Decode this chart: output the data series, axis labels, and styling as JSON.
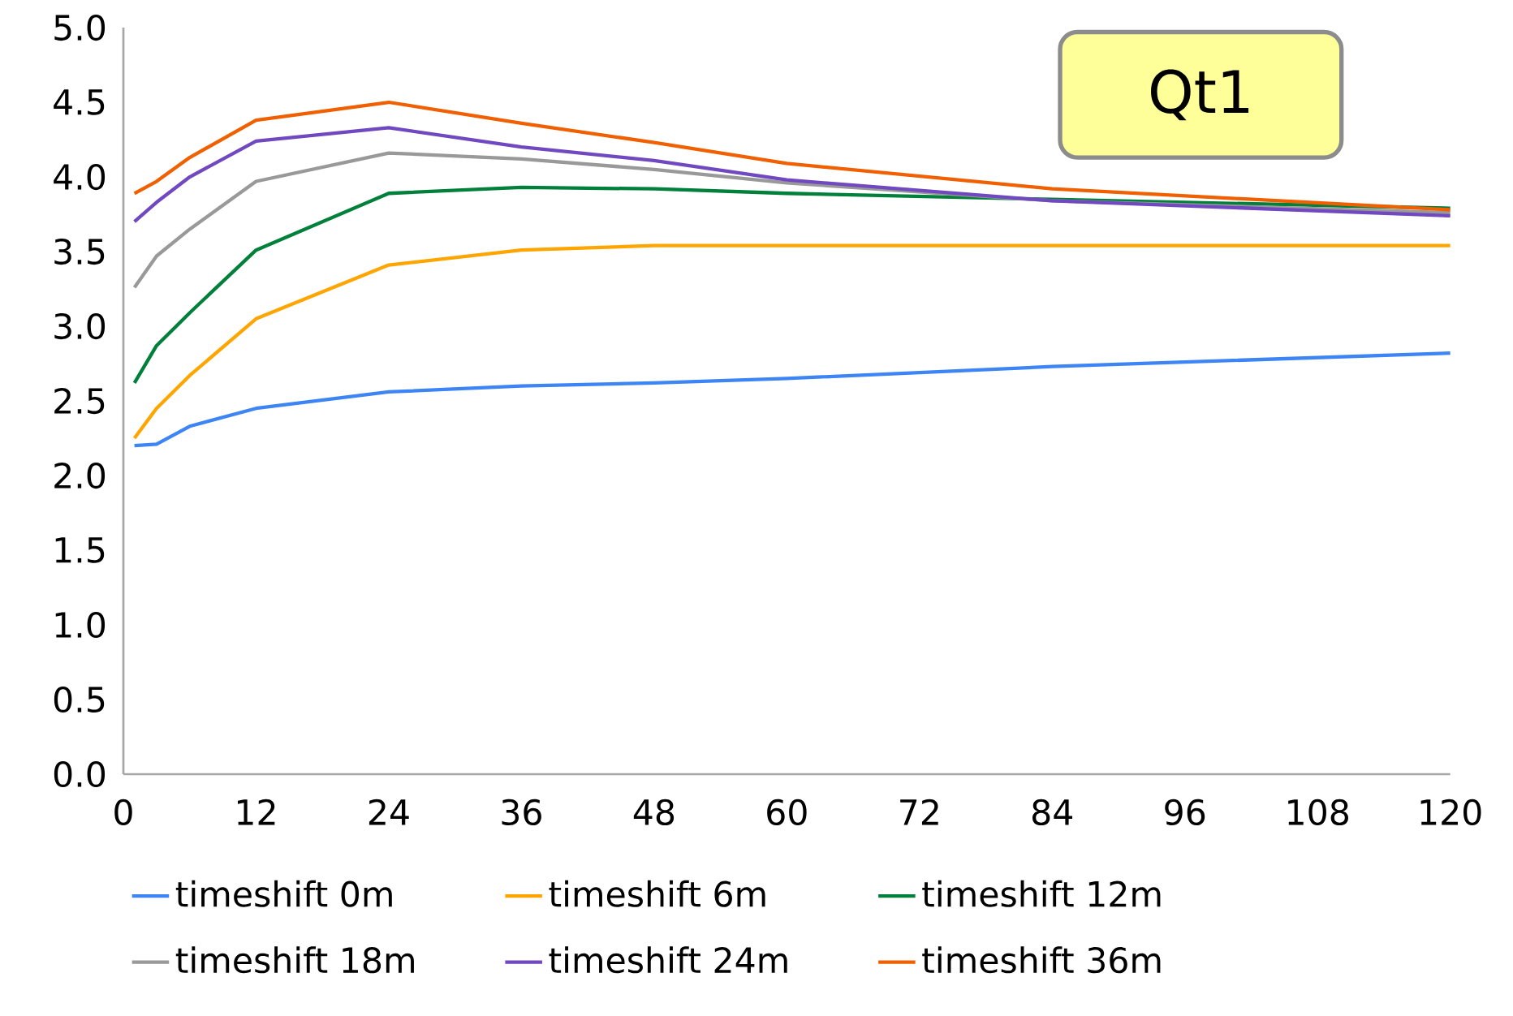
{
  "chart_data": {
    "type": "line",
    "x": [
      1,
      3,
      6,
      12,
      24,
      36,
      48,
      60,
      84,
      120
    ],
    "series": [
      {
        "name": "timeshift 0m",
        "color": "#3d85f5",
        "values": [
          2.2,
          2.21,
          2.33,
          2.45,
          2.56,
          2.6,
          2.62,
          2.65,
          2.73,
          2.82
        ]
      },
      {
        "name": "timeshift 6m",
        "color": "#ffa500",
        "values": [
          2.25,
          2.45,
          2.67,
          3.05,
          3.41,
          3.51,
          3.54,
          3.54,
          3.54,
          3.54
        ]
      },
      {
        "name": "timeshift 12m",
        "color": "#00803a",
        "values": [
          2.62,
          2.87,
          3.09,
          3.51,
          3.89,
          3.93,
          3.92,
          3.89,
          3.85,
          3.79
        ]
      },
      {
        "name": "timeshift 18m",
        "color": "#999999",
        "values": [
          3.26,
          3.47,
          3.65,
          3.97,
          4.16,
          4.12,
          4.05,
          3.96,
          3.84,
          3.76
        ]
      },
      {
        "name": "timeshift 24m",
        "color": "#7048c0",
        "values": [
          3.7,
          3.83,
          4.0,
          4.24,
          4.33,
          4.2,
          4.11,
          3.98,
          3.84,
          3.74
        ]
      },
      {
        "name": "timeshift 36m",
        "color": "#f06000",
        "values": [
          3.89,
          3.97,
          4.13,
          4.38,
          4.5,
          4.36,
          4.23,
          4.09,
          3.92,
          3.78
        ]
      }
    ],
    "xlim": [
      0,
      120
    ],
    "ylim": [
      0,
      5
    ],
    "xticks": [
      0,
      12,
      24,
      36,
      48,
      60,
      72,
      84,
      96,
      108,
      120
    ],
    "yticks": [
      {
        "value": 0,
        "label": "0.0"
      },
      {
        "value": 0.5,
        "label": "0.5"
      },
      {
        "value": 1,
        "label": "1.0"
      },
      {
        "value": 1.5,
        "label": "1.5"
      },
      {
        "value": 2,
        "label": "2.0"
      },
      {
        "value": 2.5,
        "label": "2.5"
      },
      {
        "value": 3,
        "label": "3.0"
      },
      {
        "value": 3.5,
        "label": "3.5"
      },
      {
        "value": 4,
        "label": "4.0"
      },
      {
        "value": 4.5,
        "label": "4.5"
      },
      {
        "value": 5,
        "label": "5.0"
      }
    ],
    "legend": "bottom",
    "annotations": [
      "Qt1"
    ]
  }
}
